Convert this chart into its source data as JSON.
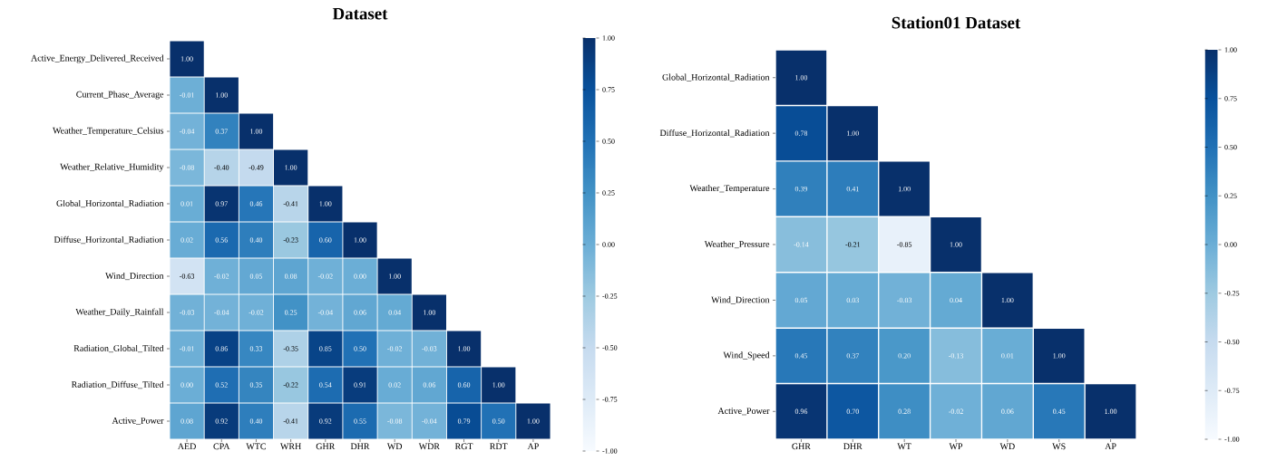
{
  "chart_data": [
    {
      "type": "heatmap",
      "title": "Dataset",
      "categories": [
        "AED",
        "CPA",
        "WTC",
        "WRH",
        "GHR",
        "DHR",
        "WD",
        "WDR",
        "RGT",
        "RDT",
        "AP"
      ],
      "y_categories": [
        "Active_Energy_Delivered_Received",
        "Current_Phase_Average",
        "Weather_Temperature_Celsius",
        "Weather_Relative_Humidity",
        "Global_Horizontal_Radiation",
        "Diffuse_Horizontal_Radiation",
        "Wind_Direction",
        "Weather_Daily_Rainfall",
        "Radiation_Global_Tilted",
        "Radiation_Diffuse_Tilted",
        "Active_Power"
      ],
      "cells": [
        [
          1.0,
          null,
          null,
          null,
          null,
          null,
          null,
          null,
          null,
          null,
          null
        ],
        [
          -0.01,
          1.0,
          null,
          null,
          null,
          null,
          null,
          null,
          null,
          null,
          null
        ],
        [
          -0.04,
          0.37,
          1.0,
          null,
          null,
          null,
          null,
          null,
          null,
          null,
          null
        ],
        [
          -0.08,
          -0.4,
          -0.49,
          1.0,
          null,
          null,
          null,
          null,
          null,
          null,
          null
        ],
        [
          0.01,
          0.97,
          0.46,
          -0.41,
          1.0,
          null,
          null,
          null,
          null,
          null,
          null
        ],
        [
          0.02,
          0.56,
          0.4,
          -0.23,
          0.6,
          1.0,
          null,
          null,
          null,
          null,
          null
        ],
        [
          -0.63,
          -0.02,
          0.05,
          0.08,
          -0.02,
          0.0,
          1.0,
          null,
          null,
          null,
          null
        ],
        [
          -0.03,
          -0.04,
          -0.02,
          0.25,
          -0.04,
          0.06,
          0.04,
          1.0,
          null,
          null,
          null
        ],
        [
          -0.01,
          0.86,
          0.33,
          -0.35,
          0.85,
          0.5,
          -0.02,
          -0.03,
          1.0,
          null,
          null
        ],
        [
          0.0,
          0.52,
          0.35,
          -0.22,
          0.54,
          0.91,
          0.02,
          0.06,
          0.6,
          1.0,
          null
        ],
        [
          0.08,
          0.92,
          0.4,
          -0.41,
          0.92,
          0.55,
          -0.08,
          -0.04,
          0.79,
          0.5,
          1.0
        ]
      ],
      "cell_labels": [
        [
          "1.00",
          null,
          null,
          null,
          null,
          null,
          null,
          null,
          null,
          null,
          null
        ],
        [
          "-0.01",
          "1.00",
          null,
          null,
          null,
          null,
          null,
          null,
          null,
          null,
          null
        ],
        [
          "-0.04",
          "0.37",
          "1.00",
          null,
          null,
          null,
          null,
          null,
          null,
          null,
          null
        ],
        [
          "-0.08",
          "-0.40",
          "-0.49",
          "1.00",
          null,
          null,
          null,
          null,
          null,
          null,
          null
        ],
        [
          "0.01",
          "0.97",
          "0.46",
          "-0.41",
          "1.00",
          null,
          null,
          null,
          null,
          null,
          null
        ],
        [
          "0.02",
          "0.56",
          "0.40",
          "-0.23",
          "0.60",
          "1.00",
          null,
          null,
          null,
          null,
          null
        ],
        [
          "-0.63",
          "-0.02",
          "0.05",
          "0.08",
          "-0.02",
          "0.00",
          "1.00",
          null,
          null,
          null,
          null
        ],
        [
          "-0.03",
          "-0.04",
          "-0.02",
          "0.25",
          "-0.04",
          "0.06",
          "0.04",
          "1.00",
          null,
          null,
          null
        ],
        [
          "-0.01",
          "0.86",
          "0.33",
          "-0.35",
          "0.85",
          "0.50",
          "-0.02",
          "-0.03",
          "1.00",
          null,
          null
        ],
        [
          "0.00",
          "0.52",
          "0.35",
          "-0.22",
          "0.54",
          "0.91",
          "0.02",
          "0.06",
          "0.60",
          "1.00",
          null
        ],
        [
          "0.08",
          "0.92",
          "0.40",
          "-0.41",
          "0.92",
          "0.55",
          "-0.08",
          "-0.04",
          "0.79",
          "0.50",
          "1.00"
        ]
      ],
      "clim": [
        -1,
        1
      ],
      "cticks": [
        {
          "value": -1,
          "label": "-1.00"
        },
        {
          "value": -0.75,
          "label": "-0.75"
        },
        {
          "value": -0.5,
          "label": "-0.50"
        },
        {
          "value": -0.25,
          "label": "-0.25"
        },
        {
          "value": 0,
          "label": "0.00"
        },
        {
          "value": 0.25,
          "label": "0.25"
        },
        {
          "value": 0.5,
          "label": "0.50"
        },
        {
          "value": 0.75,
          "label": "0.75"
        },
        {
          "value": 1,
          "label": "1.00"
        }
      ]
    },
    {
      "type": "heatmap",
      "title": "Station01 Dataset",
      "categories": [
        "GHR",
        "DHR",
        "WT",
        "WP",
        "WD",
        "WS",
        "AP"
      ],
      "y_categories": [
        "Global_Horizontal_Radiation",
        "Diffuse_Horizontal_Radiation",
        "Weather_Temperature",
        "Weather_Pressure",
        "Wind_Direction",
        "Wind_Speed",
        "Active_Power"
      ],
      "cells": [
        [
          1.0,
          null,
          null,
          null,
          null,
          null,
          null
        ],
        [
          0.78,
          1.0,
          null,
          null,
          null,
          null,
          null
        ],
        [
          0.39,
          0.41,
          1.0,
          null,
          null,
          null,
          null
        ],
        [
          -0.14,
          -0.21,
          -0.85,
          1.0,
          null,
          null,
          null
        ],
        [
          0.05,
          0.03,
          -0.03,
          0.04,
          1.0,
          null,
          null
        ],
        [
          0.45,
          0.37,
          0.2,
          -0.13,
          0.01,
          1.0,
          null
        ],
        [
          0.96,
          0.7,
          0.28,
          -0.02,
          0.06,
          0.45,
          1.0
        ]
      ],
      "cell_labels": [
        [
          "1.00",
          null,
          null,
          null,
          null,
          null,
          null
        ],
        [
          "0.78",
          "1.00",
          null,
          null,
          null,
          null,
          null
        ],
        [
          "0.39",
          "0.41",
          "1.00",
          null,
          null,
          null,
          null
        ],
        [
          "-0.14",
          "-0.21",
          "-0.85",
          "1.00",
          null,
          null,
          null
        ],
        [
          "0.05",
          "0.03",
          "-0.03",
          "0.04",
          "1.00",
          null,
          null
        ],
        [
          "0.45",
          "0.37",
          "0.20",
          "-0.13",
          "0.01",
          "1.00",
          null
        ],
        [
          "0.96",
          "0.70",
          "0.28",
          "-0.02",
          "0.06",
          "0.45",
          "1.00"
        ]
      ],
      "clim": [
        -1,
        1
      ],
      "cticks": [
        {
          "value": -1,
          "label": "-1.00"
        },
        {
          "value": -0.75,
          "label": "-0.75"
        },
        {
          "value": -0.5,
          "label": "-0.50"
        },
        {
          "value": -0.25,
          "label": "-0.25"
        },
        {
          "value": 0,
          "label": "0.00"
        },
        {
          "value": 0.25,
          "label": "0.25"
        },
        {
          "value": 0.5,
          "label": "0.50"
        },
        {
          "value": 0.75,
          "label": "0.75"
        },
        {
          "value": 1,
          "label": "1.00"
        }
      ]
    }
  ]
}
